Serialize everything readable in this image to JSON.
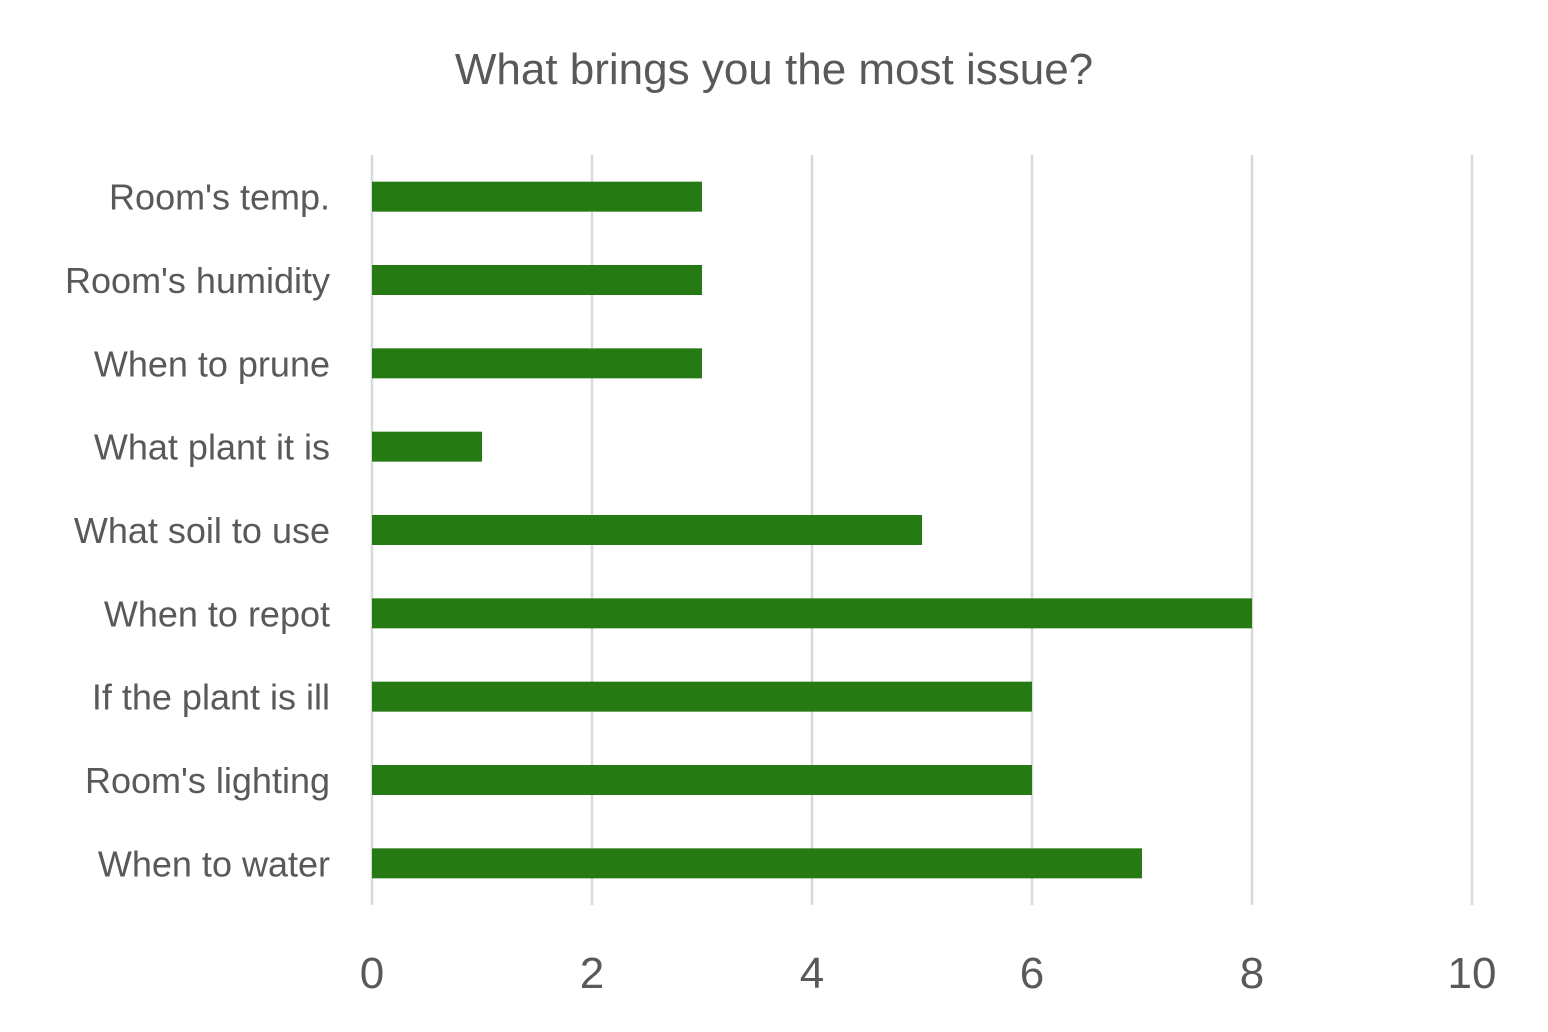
{
  "chart_data": {
    "type": "bar",
    "orientation": "horizontal",
    "title": "What brings you the most issue?",
    "xlabel": "",
    "ylabel": "",
    "categories": [
      "Room's temp.",
      "Room's humidity",
      "When to prune",
      "What plant it is",
      "What soil to use",
      "When to repot",
      "If the plant is ill",
      "Room's lighting",
      "When to water"
    ],
    "values": [
      3,
      3,
      3,
      1,
      5,
      8,
      6,
      6,
      7
    ],
    "xlim": [
      0,
      10
    ],
    "xticks": [
      "0",
      "2",
      "4",
      "6",
      "8",
      "10"
    ],
    "grid": true,
    "legend": "none",
    "bar_color": "#267a14"
  }
}
